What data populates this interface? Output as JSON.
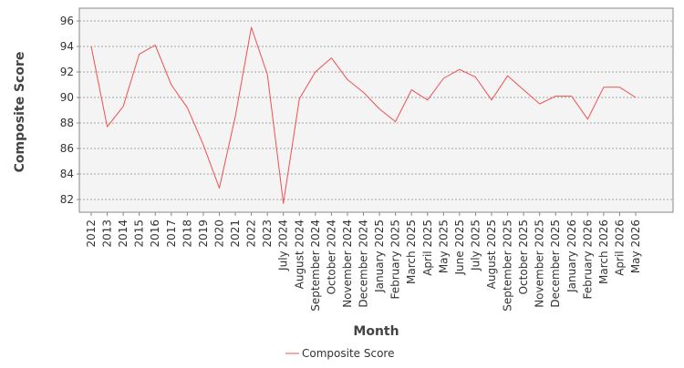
{
  "chart_data": {
    "type": "line",
    "title": "",
    "xlabel": "Month",
    "ylabel": "Composite Score",
    "ylim": [
      81,
      97
    ],
    "yticks": [
      82,
      84,
      86,
      88,
      90,
      92,
      94,
      96
    ],
    "grid": true,
    "legend_position": "bottom-center",
    "categories": [
      "2012",
      "2013",
      "2014",
      "2015",
      "2016",
      "2017",
      "2018",
      "2019",
      "2020",
      "2021",
      "2022",
      "2023",
      "July 2024",
      "August 2024",
      "September 2024",
      "October 2024",
      "November 2024",
      "December 2024",
      "January 2025",
      "February 2025",
      "March 2025",
      "April 2025",
      "May 2025",
      "June 2025",
      "July 2025",
      "August 2025",
      "September 2025",
      "October 2025",
      "November 2025",
      "December 2025",
      "January 2026",
      "February 2026",
      "March 2026",
      "April 2026",
      "May 2026"
    ],
    "series": [
      {
        "name": "Composite Score",
        "color": "#f05050",
        "values": [
          94.0,
          87.7,
          89.3,
          93.4,
          94.1,
          91.0,
          89.2,
          86.3,
          82.9,
          88.5,
          95.5,
          91.8,
          81.7,
          89.9,
          92.0,
          93.1,
          91.4,
          90.4,
          89.1,
          88.1,
          90.6,
          89.8,
          91.5,
          92.2,
          91.6,
          89.8,
          91.7,
          90.6,
          89.5,
          90.1,
          90.1,
          88.3,
          90.8,
          90.8,
          90.0
        ]
      }
    ]
  }
}
